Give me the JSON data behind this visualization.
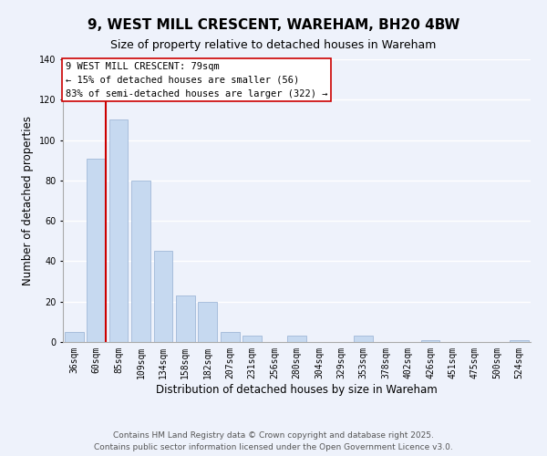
{
  "title": "9, WEST MILL CRESCENT, WAREHAM, BH20 4BW",
  "subtitle": "Size of property relative to detached houses in Wareham",
  "xlabel": "Distribution of detached houses by size in Wareham",
  "ylabel": "Number of detached properties",
  "categories": [
    "36sqm",
    "60sqm",
    "85sqm",
    "109sqm",
    "134sqm",
    "158sqm",
    "182sqm",
    "207sqm",
    "231sqm",
    "256sqm",
    "280sqm",
    "304sqm",
    "329sqm",
    "353sqm",
    "378sqm",
    "402sqm",
    "426sqm",
    "451sqm",
    "475sqm",
    "500sqm",
    "524sqm"
  ],
  "values": [
    5,
    91,
    110,
    80,
    45,
    23,
    20,
    5,
    3,
    0,
    3,
    0,
    0,
    3,
    0,
    0,
    1,
    0,
    0,
    0,
    1
  ],
  "bar_color": "#c6d9f0",
  "bar_edge_color": "#a0b8d8",
  "vline_color": "#cc0000",
  "vline_x": 1.575,
  "annotation_title": "9 WEST MILL CRESCENT: 79sqm",
  "annotation_line1": "← 15% of detached houses are smaller (56)",
  "annotation_line2": "83% of semi-detached houses are larger (322) →",
  "annotation_box_color": "#ffffff",
  "annotation_box_edge": "#cc0000",
  "ylim": [
    0,
    140
  ],
  "yticks": [
    0,
    20,
    40,
    60,
    80,
    100,
    120,
    140
  ],
  "footer1": "Contains HM Land Registry data © Crown copyright and database right 2025.",
  "footer2": "Contains public sector information licensed under the Open Government Licence v3.0.",
  "bg_color": "#eef2fb",
  "grid_color": "#ffffff",
  "title_fontsize": 11,
  "subtitle_fontsize": 9,
  "axis_label_fontsize": 8.5,
  "tick_fontsize": 7,
  "annotation_fontsize": 7.5,
  "footer_fontsize": 6.5
}
